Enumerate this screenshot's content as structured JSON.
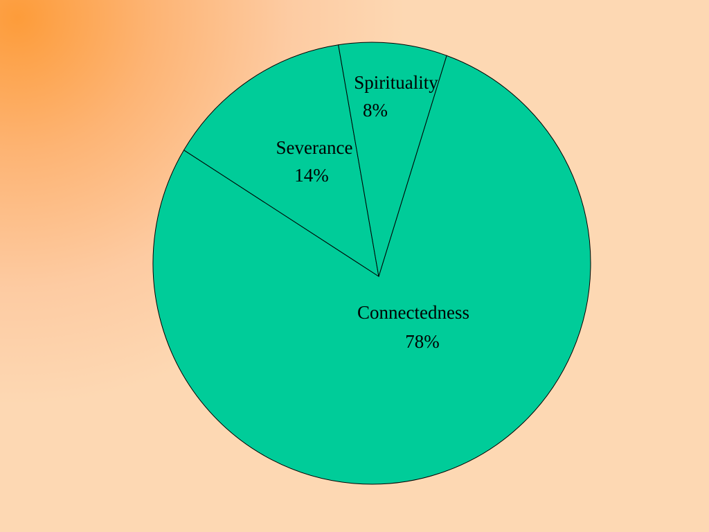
{
  "chart_data": {
    "type": "pie",
    "title": "",
    "slices": [
      {
        "name": "Connectedness",
        "value": 78,
        "value_label": "78%"
      },
      {
        "name": "Severance",
        "value": 14,
        "value_label": "14%"
      },
      {
        "name": "Spirituality",
        "value": 8,
        "value_label": "8%"
      }
    ],
    "colors": {
      "slice_fill": "#00cc99",
      "slice_stroke": "#000000",
      "background_accent": "#fd9c3a",
      "background_base": "#fdd8b3"
    },
    "legend": "none"
  }
}
